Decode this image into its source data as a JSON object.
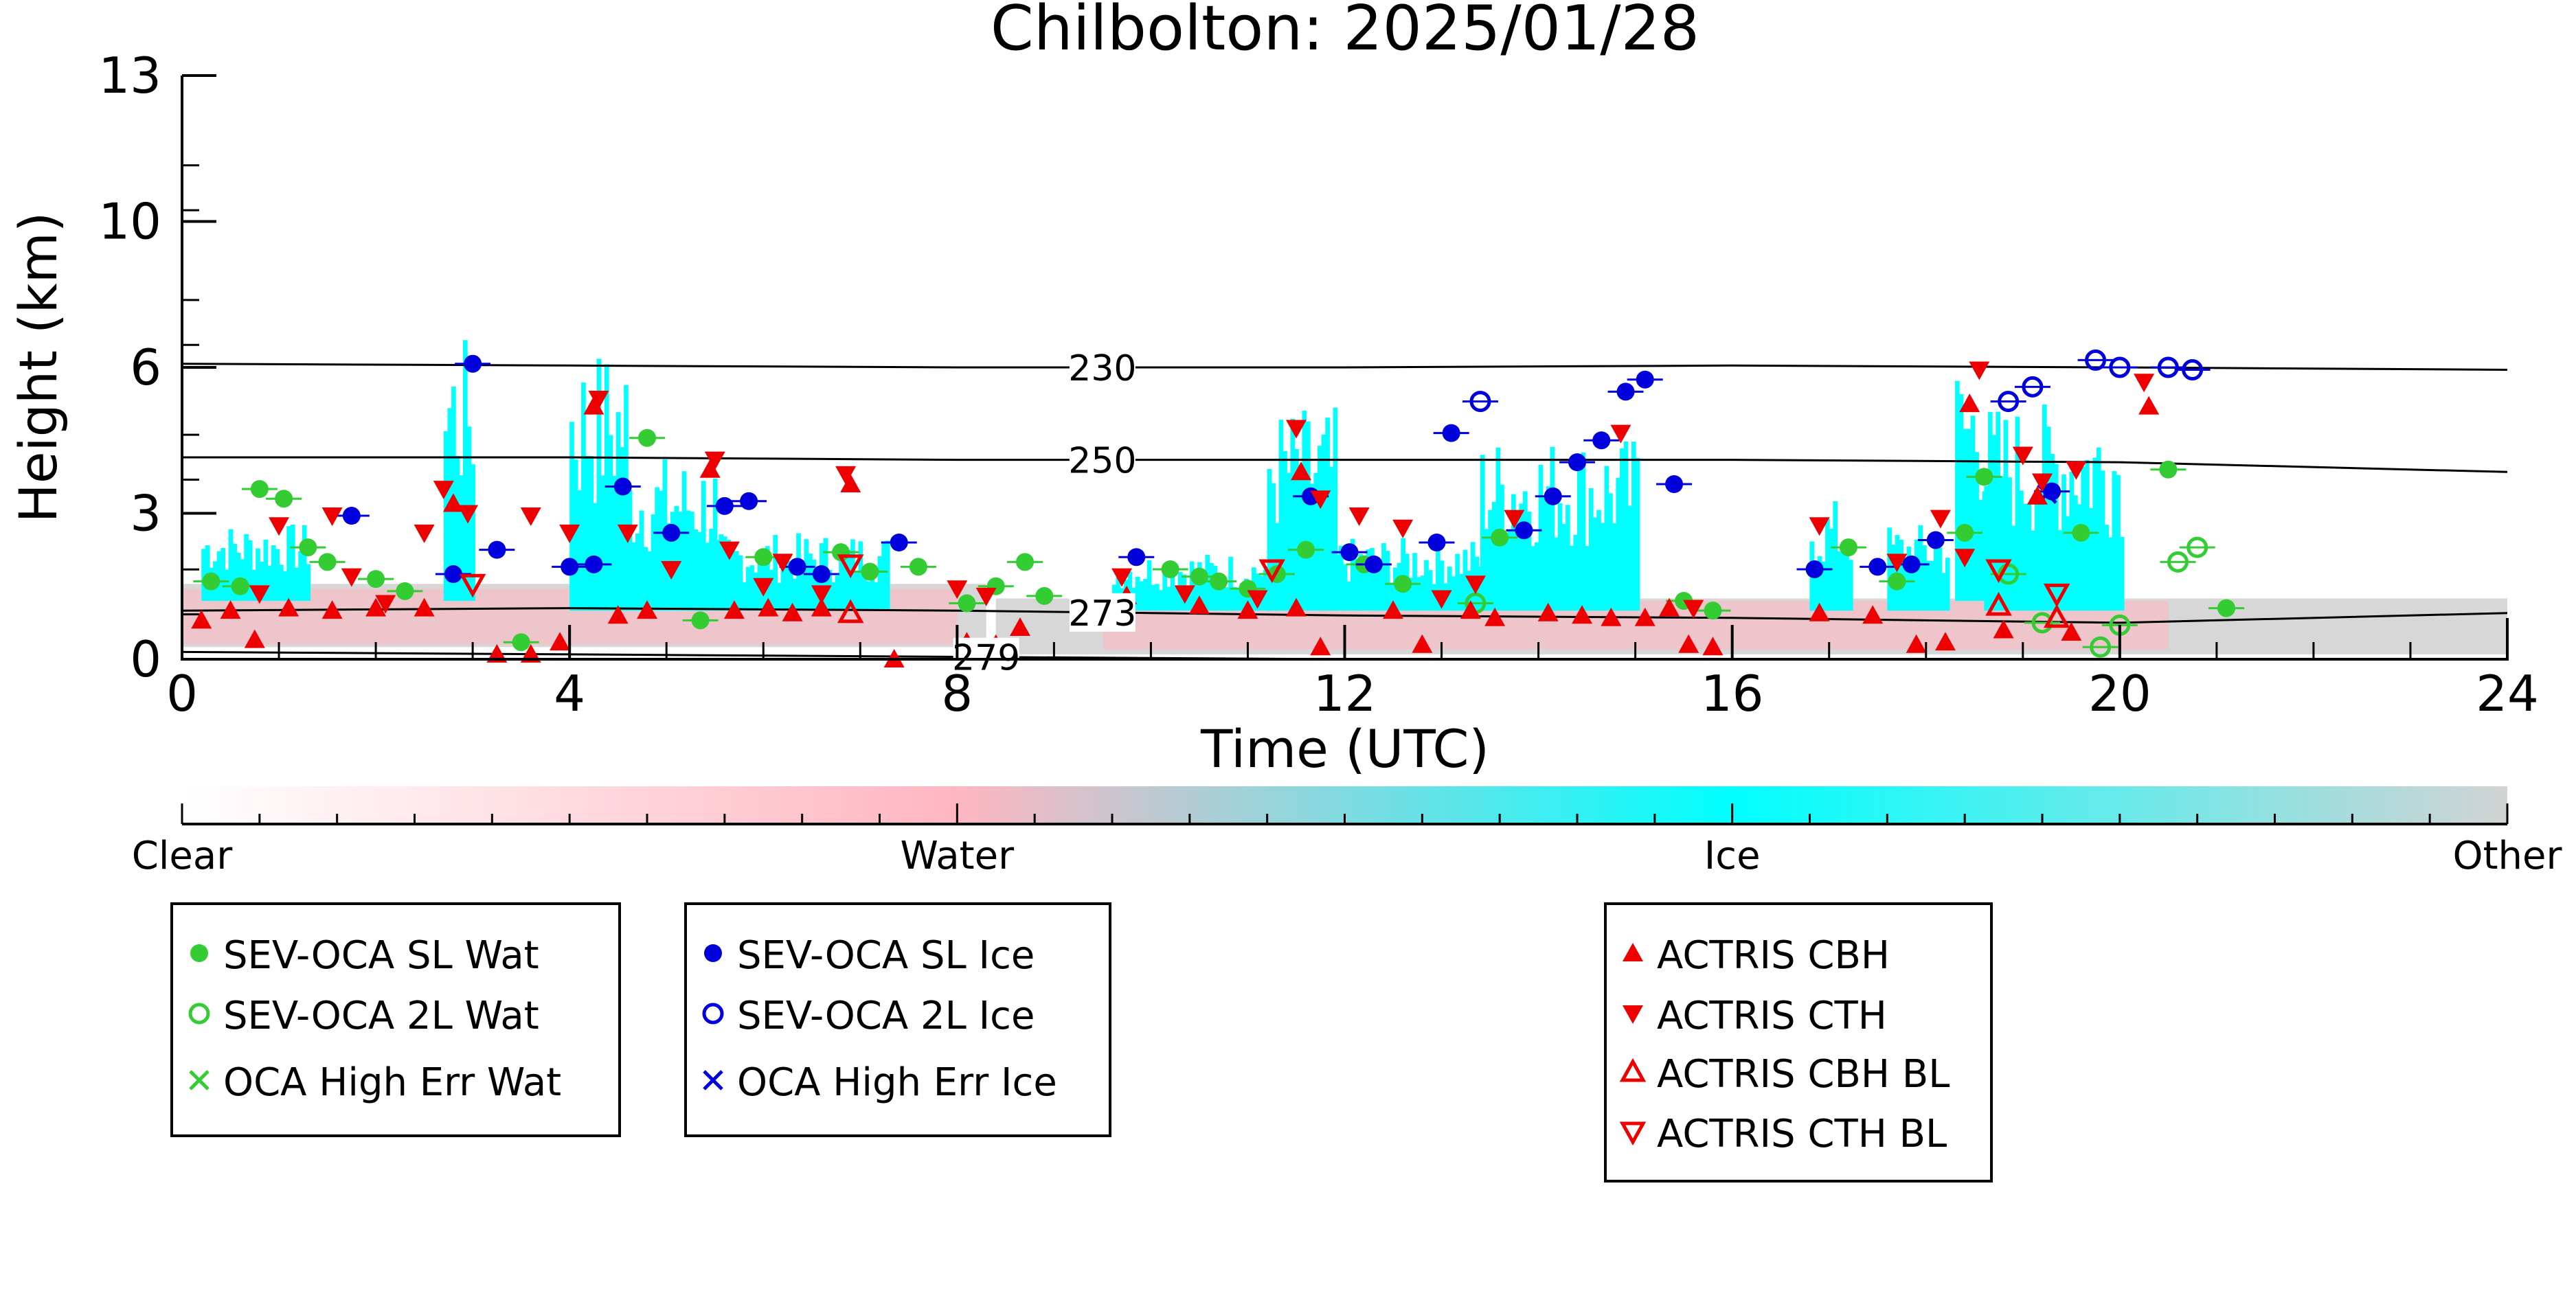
{
  "chart_data": {
    "type": "scatter",
    "title": "Chilbolton: 2025/01/28",
    "xlabel": "Time (UTC)",
    "ylabel": "Height (km)",
    "xlim": [
      0,
      24
    ],
    "ylim": [
      0,
      13
    ],
    "x_ticks": [
      0,
      4,
      8,
      12,
      16,
      20,
      24
    ],
    "y_ticks": [
      0,
      3,
      6,
      10,
      13
    ],
    "isotherms": [
      {
        "label": "230",
        "label_x": 9.5,
        "points": [
          [
            0,
            6.1
          ],
          [
            4,
            6.05
          ],
          [
            8,
            6.0
          ],
          [
            12,
            6.0
          ],
          [
            16,
            6.05
          ],
          [
            20,
            6.0
          ],
          [
            24,
            5.95
          ]
        ]
      },
      {
        "label": "250",
        "label_x": 9.5,
        "points": [
          [
            0,
            4.15
          ],
          [
            4,
            4.15
          ],
          [
            8,
            4.1
          ],
          [
            12,
            4.1
          ],
          [
            16,
            4.1
          ],
          [
            20,
            4.05
          ],
          [
            24,
            3.85
          ]
        ]
      },
      {
        "label": "273",
        "label_x": 9.5,
        "points": [
          [
            0,
            1.0
          ],
          [
            4,
            1.05
          ],
          [
            8,
            1.0
          ],
          [
            10,
            0.95
          ],
          [
            12,
            0.9
          ],
          [
            16,
            0.85
          ],
          [
            20,
            0.75
          ],
          [
            24,
            0.95
          ]
        ]
      },
      {
        "label": "279",
        "label_x": 8.3,
        "points": [
          [
            0,
            0.15
          ],
          [
            4,
            0.1
          ],
          [
            8,
            0.05
          ],
          [
            12,
            0.0
          ]
        ]
      }
    ],
    "colorbar": {
      "labels": [
        "Clear",
        "Water",
        "Ice",
        "Other"
      ],
      "colors": [
        "#ffffff",
        "#ffb6c1",
        "#00ffff",
        "#d3d3d3"
      ]
    },
    "series": [
      {
        "name": "SEV-OCA SL Wat",
        "color": "#33cc33",
        "marker": "circle-filled",
        "points": [
          [
            0.3,
            1.6
          ],
          [
            0.6,
            1.5
          ],
          [
            0.8,
            3.5
          ],
          [
            1.05,
            3.3
          ],
          [
            1.3,
            2.3
          ],
          [
            1.5,
            2.0
          ],
          [
            2.0,
            1.65
          ],
          [
            2.3,
            1.4
          ],
          [
            3.5,
            0.35
          ],
          [
            4.8,
            4.55
          ],
          [
            5.35,
            0.8
          ],
          [
            6.0,
            2.1
          ],
          [
            6.8,
            2.2
          ],
          [
            7.1,
            1.8
          ],
          [
            7.6,
            1.9
          ],
          [
            8.1,
            1.15
          ],
          [
            8.4,
            1.5
          ],
          [
            8.7,
            2.0
          ],
          [
            8.9,
            1.3
          ],
          [
            10.2,
            1.85
          ],
          [
            10.5,
            1.7
          ],
          [
            10.7,
            1.6
          ],
          [
            11.0,
            1.45
          ],
          [
            11.3,
            1.75
          ],
          [
            11.6,
            2.25
          ],
          [
            12.2,
            1.95
          ],
          [
            12.6,
            1.55
          ],
          [
            13.6,
            2.5
          ],
          [
            15.5,
            1.2
          ],
          [
            15.8,
            1.0
          ],
          [
            17.2,
            2.3
          ],
          [
            17.7,
            1.6
          ],
          [
            18.4,
            2.6
          ],
          [
            18.6,
            3.75
          ],
          [
            19.6,
            2.6
          ],
          [
            20.5,
            3.9
          ],
          [
            21.1,
            1.05
          ]
        ]
      },
      {
        "name": "SEV-OCA 2L Wat",
        "color": "#33cc33",
        "marker": "circle-open",
        "points": [
          [
            13.35,
            1.15
          ],
          [
            18.85,
            1.75
          ],
          [
            19.2,
            0.75
          ],
          [
            19.8,
            0.25
          ],
          [
            20.0,
            0.7
          ],
          [
            20.6,
            2.0
          ],
          [
            20.8,
            2.3
          ]
        ]
      },
      {
        "name": "OCA High Err Wat",
        "color": "#33cc33",
        "marker": "x",
        "points": []
      },
      {
        "name": "SEV-OCA SL Ice",
        "color": "#0000dd",
        "marker": "circle-filled",
        "points": [
          [
            1.75,
            2.95
          ],
          [
            2.8,
            1.75
          ],
          [
            3.0,
            6.1
          ],
          [
            3.25,
            2.25
          ],
          [
            4.0,
            1.9
          ],
          [
            4.25,
            1.95
          ],
          [
            4.55,
            3.55
          ],
          [
            5.05,
            2.6
          ],
          [
            5.6,
            3.15
          ],
          [
            5.85,
            3.25
          ],
          [
            6.35,
            1.9
          ],
          [
            6.6,
            1.75
          ],
          [
            7.4,
            2.4
          ],
          [
            9.85,
            2.1
          ],
          [
            11.65,
            3.35
          ],
          [
            12.05,
            2.2
          ],
          [
            12.3,
            1.95
          ],
          [
            12.95,
            2.4
          ],
          [
            13.1,
            4.65
          ],
          [
            13.85,
            2.65
          ],
          [
            14.15,
            3.35
          ],
          [
            14.4,
            4.05
          ],
          [
            14.65,
            4.5
          ],
          [
            14.9,
            5.5
          ],
          [
            15.1,
            5.75
          ],
          [
            15.4,
            3.6
          ],
          [
            16.85,
            1.85
          ],
          [
            17.5,
            1.9
          ],
          [
            17.85,
            1.95
          ],
          [
            18.1,
            2.45
          ],
          [
            19.3,
            3.45
          ]
        ]
      },
      {
        "name": "SEV-OCA 2L Ice",
        "color": "#0000dd",
        "marker": "circle-open",
        "points": [
          [
            13.4,
            5.3
          ],
          [
            18.85,
            5.3
          ],
          [
            19.1,
            5.6
          ],
          [
            19.75,
            6.2
          ],
          [
            20.0,
            6.0
          ],
          [
            20.5,
            6.0
          ],
          [
            20.75,
            5.95
          ]
        ]
      },
      {
        "name": "OCA High Err Ice",
        "color": "#0000dd",
        "marker": "x",
        "points": [
          [
            19.25,
            3.4
          ]
        ]
      },
      {
        "name": "ACTRIS CBH",
        "color": "#ee0000",
        "marker": "triangle-up-filled",
        "points": [
          [
            0.2,
            0.8
          ],
          [
            0.5,
            1.0
          ],
          [
            0.75,
            0.4
          ],
          [
            1.1,
            1.05
          ],
          [
            1.55,
            1.0
          ],
          [
            2.0,
            1.05
          ],
          [
            2.5,
            1.05
          ],
          [
            2.8,
            3.2
          ],
          [
            3.25,
            0.1
          ],
          [
            3.6,
            0.1
          ],
          [
            3.9,
            0.35
          ],
          [
            4.25,
            5.2
          ],
          [
            4.5,
            0.9
          ],
          [
            4.8,
            1.0
          ],
          [
            5.45,
            3.9
          ],
          [
            5.7,
            1.0
          ],
          [
            6.05,
            1.05
          ],
          [
            6.3,
            0.95
          ],
          [
            6.6,
            1.05
          ],
          [
            6.9,
            3.6
          ],
          [
            7.35,
            0.0
          ],
          [
            8.1,
            0.35
          ],
          [
            8.4,
            0.3
          ],
          [
            8.65,
            0.65
          ],
          [
            9.75,
            1.3
          ],
          [
            10.5,
            1.1
          ],
          [
            11.0,
            1.0
          ],
          [
            11.5,
            1.05
          ],
          [
            11.55,
            3.85
          ],
          [
            11.75,
            0.25
          ],
          [
            12.5,
            1.0
          ],
          [
            12.8,
            0.3
          ],
          [
            13.3,
            1.0
          ],
          [
            13.55,
            0.85
          ],
          [
            14.1,
            0.95
          ],
          [
            14.45,
            0.9
          ],
          [
            14.75,
            0.85
          ],
          [
            15.1,
            0.85
          ],
          [
            15.35,
            1.05
          ],
          [
            15.55,
            0.3
          ],
          [
            15.8,
            0.25
          ],
          [
            16.9,
            0.95
          ],
          [
            17.45,
            0.9
          ],
          [
            17.9,
            0.3
          ],
          [
            18.2,
            0.35
          ],
          [
            18.45,
            5.25
          ],
          [
            18.8,
            0.6
          ],
          [
            19.15,
            3.35
          ],
          [
            19.5,
            0.55
          ],
          [
            20.3,
            5.2
          ]
        ]
      },
      {
        "name": "ACTRIS CTH",
        "color": "#ee0000",
        "marker": "triangle-down-filled",
        "points": [
          [
            0.8,
            1.35
          ],
          [
            1.0,
            2.75
          ],
          [
            1.55,
            2.95
          ],
          [
            1.75,
            1.7
          ],
          [
            2.1,
            1.15
          ],
          [
            2.5,
            2.6
          ],
          [
            2.7,
            3.5
          ],
          [
            2.95,
            3.0
          ],
          [
            3.6,
            2.95
          ],
          [
            4.0,
            2.6
          ],
          [
            4.3,
            5.35
          ],
          [
            4.6,
            2.6
          ],
          [
            5.05,
            1.85
          ],
          [
            5.5,
            4.1
          ],
          [
            5.65,
            2.25
          ],
          [
            6.0,
            1.5
          ],
          [
            6.2,
            2.0
          ],
          [
            6.6,
            1.35
          ],
          [
            6.85,
            3.8
          ],
          [
            8.0,
            1.45
          ],
          [
            8.3,
            1.3
          ],
          [
            9.7,
            1.7
          ],
          [
            10.35,
            1.35
          ],
          [
            11.1,
            1.25
          ],
          [
            11.5,
            4.75
          ],
          [
            11.75,
            3.3
          ],
          [
            12.15,
            2.95
          ],
          [
            12.6,
            2.7
          ],
          [
            13.0,
            1.25
          ],
          [
            13.35,
            1.55
          ],
          [
            13.75,
            2.9
          ],
          [
            14.85,
            4.65
          ],
          [
            15.6,
            1.05
          ],
          [
            16.9,
            2.75
          ],
          [
            17.7,
            2.0
          ],
          [
            18.15,
            2.9
          ],
          [
            18.4,
            2.1
          ],
          [
            18.55,
            5.95
          ],
          [
            19.0,
            4.2
          ],
          [
            19.2,
            3.65
          ],
          [
            19.55,
            3.9
          ],
          [
            20.25,
            5.7
          ]
        ]
      },
      {
        "name": "ACTRIS CBH BL",
        "color": "#ee0000",
        "marker": "triangle-up-open",
        "points": [
          [
            6.9,
            0.95
          ],
          [
            18.75,
            1.1
          ],
          [
            19.35,
            0.85
          ]
        ]
      },
      {
        "name": "ACTRIS CTH BL",
        "color": "#ee0000",
        "marker": "triangle-down-open",
        "points": [
          [
            3.0,
            1.55
          ],
          [
            6.9,
            1.95
          ],
          [
            11.25,
            1.85
          ],
          [
            18.75,
            1.85
          ],
          [
            19.35,
            1.35
          ]
        ]
      }
    ],
    "legend": [
      [
        "SEV-OCA SL Wat",
        "SEV-OCA 2L Wat",
        "OCA High Err Wat"
      ],
      [
        "SEV-OCA SL Ice",
        "SEV-OCA 2L Ice",
        "OCA High Err Ice"
      ],
      [
        "ACTRIS CBH",
        "ACTRIS CTH",
        "ACTRIS CBH BL",
        "ACTRIS CTH BL"
      ]
    ],
    "grid": false,
    "legend_placement": "below"
  }
}
